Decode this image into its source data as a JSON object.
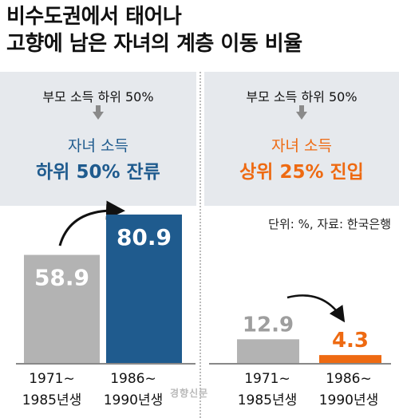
{
  "title": {
    "line1": "비수도권에서 태어나",
    "line2": "고향에 남은 자녀의 계층 이동 비율"
  },
  "panels": [
    {
      "condition": "부모 소득 하위 50%",
      "result_line1": "자녀 소득",
      "result_line2": "하위 50% 잔류",
      "accent": "#1f5b8e"
    },
    {
      "condition": "부모 소득 하위 50%",
      "result_line1": "자녀 소득",
      "result_line2": "상위 25% 진입",
      "accent": "#ee6a12"
    }
  ],
  "note": "단위: %, 자료: 한국은행",
  "watermark": "경향신문",
  "chart_data": [
    {
      "type": "bar",
      "categories": [
        "1971~\n1985년생",
        "1986~\n1990년생"
      ],
      "category_lines": [
        [
          "1971~",
          "1985년생"
        ],
        [
          "1986~",
          "1990년생"
        ]
      ],
      "values": [
        58.9,
        80.9
      ],
      "value_labels": [
        "58.9",
        "80.9"
      ],
      "colors": [
        "#b3b3b3",
        "#1f5b8e"
      ],
      "ylim": [
        0,
        100
      ]
    },
    {
      "type": "bar",
      "categories": [
        "1971~\n1985년생",
        "1986~\n1990년생"
      ],
      "category_lines": [
        [
          "1971~",
          "1985년생"
        ],
        [
          "1986~",
          "1990년생"
        ]
      ],
      "values": [
        12.9,
        4.3
      ],
      "value_labels": [
        "12.9",
        "4.3"
      ],
      "colors": [
        "#b3b3b3",
        "#ee6a12"
      ],
      "ylim": [
        0,
        100
      ]
    }
  ]
}
